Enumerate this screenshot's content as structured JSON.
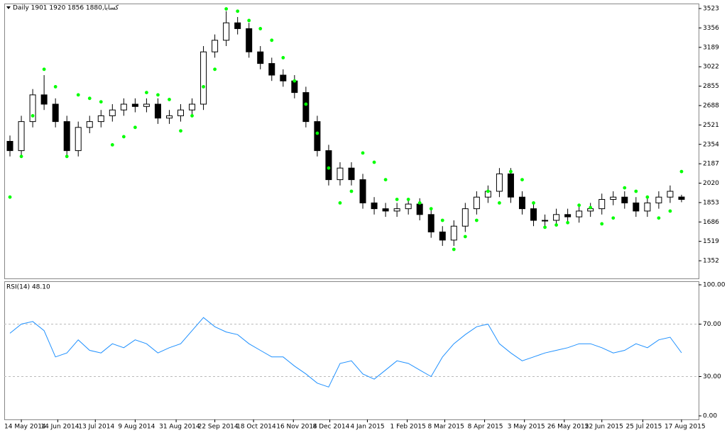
{
  "chart_data": [
    {
      "type": "candlestick",
      "title": "كسابا,Daily  1901 1920 1856 1880",
      "xlim": [
        -0.5,
        60.5
      ],
      "ylim": [
        1200,
        3566
      ],
      "yticks": [
        3523,
        3356,
        3189,
        3022,
        2855,
        2688,
        2521,
        2354,
        2187,
        2020,
        1853,
        1686,
        1519,
        1352
      ],
      "up_color": "#ffffff",
      "down_color": "#000000",
      "open": [
        2380,
        2300,
        2550,
        2780,
        2700,
        2550,
        2300,
        2500,
        2550,
        2600,
        2650,
        2700,
        2680,
        2700,
        2580,
        2600,
        2650,
        2700,
        3150,
        3250,
        3400,
        3350,
        3150,
        3050,
        2950,
        2900,
        2800,
        2550,
        2300,
        2050,
        2150,
        2050,
        1850,
        1800,
        1780,
        1800,
        1840,
        1750,
        1600,
        1530,
        1650,
        1800,
        1900,
        1950,
        2100,
        1900,
        1800,
        1700,
        1700,
        1750,
        1730,
        1780,
        1800,
        1880,
        1900,
        1850,
        1780,
        1850,
        1900,
        1901
      ],
      "high": [
        2430,
        2600,
        2830,
        2950,
        2750,
        2600,
        2550,
        2600,
        2650,
        2700,
        2750,
        2750,
        2750,
        2750,
        2650,
        2700,
        2750,
        3200,
        3300,
        3500,
        3450,
        3400,
        3200,
        3100,
        3000,
        2950,
        2850,
        2600,
        2350,
        2200,
        2200,
        2100,
        1900,
        1850,
        1850,
        1890,
        1890,
        1800,
        1650,
        1700,
        1850,
        1950,
        2000,
        2150,
        2150,
        1950,
        1850,
        1750,
        1800,
        1800,
        1830,
        1850,
        1930,
        1950,
        1950,
        1900,
        1900,
        1950,
        2000,
        1920
      ],
      "low": [
        2250,
        2250,
        2500,
        2650,
        2500,
        2250,
        2250,
        2450,
        2500,
        2550,
        2600,
        2630,
        2630,
        2530,
        2530,
        2550,
        2600,
        2650,
        3100,
        3200,
        3300,
        3100,
        3000,
        2900,
        2850,
        2750,
        2500,
        2250,
        2000,
        2000,
        2000,
        1800,
        1750,
        1730,
        1730,
        1750,
        1700,
        1550,
        1480,
        1480,
        1600,
        1750,
        1850,
        1900,
        1850,
        1750,
        1650,
        1650,
        1650,
        1680,
        1680,
        1730,
        1750,
        1830,
        1800,
        1730,
        1730,
        1800,
        1850,
        1856
      ],
      "close": [
        2300,
        2550,
        2780,
        2700,
        2550,
        2300,
        2500,
        2550,
        2600,
        2650,
        2700,
        2680,
        2700,
        2580,
        2600,
        2650,
        2700,
        3150,
        3250,
        3400,
        3350,
        3150,
        3050,
        2950,
        2900,
        2800,
        2550,
        2300,
        2050,
        2150,
        2050,
        1850,
        1800,
        1780,
        1800,
        1840,
        1750,
        1600,
        1530,
        1650,
        1800,
        1900,
        1950,
        2100,
        1900,
        1800,
        1700,
        1700,
        1750,
        1730,
        1780,
        1800,
        1880,
        1900,
        1850,
        1780,
        1850,
        1900,
        1950,
        1880
      ],
      "overlay": {
        "type": "scatter",
        "color": "#00ff00",
        "values": [
          1900,
          2250,
          2600,
          3000,
          2850,
          2250,
          2780,
          2750,
          2720,
          2350,
          2420,
          2500,
          2800,
          2780,
          2740,
          2470,
          2600,
          2850,
          3000,
          3520,
          3500,
          3420,
          3350,
          3250,
          3100,
          2900,
          2700,
          2450,
          2150,
          1850,
          1950,
          2280,
          2200,
          2050,
          1880,
          1880,
          1850,
          1800,
          1700,
          1450,
          1560,
          1700,
          1950,
          1850,
          2120,
          2050,
          1850,
          1640,
          1660,
          1680,
          1830,
          1810,
          1670,
          1720,
          1980,
          1950,
          1900,
          1720,
          1780,
          2120
        ]
      }
    },
    {
      "type": "line",
      "title": "RSI(14) 48.10",
      "xlim": [
        -0.5,
        60.5
      ],
      "ylim": [
        -2.7,
        102.7
      ],
      "yticks": [
        {
          "value": 100,
          "label": "100.00"
        },
        {
          "value": 70,
          "label": "70.00"
        },
        {
          "value": 30,
          "label": "30.00"
        },
        {
          "value": 0,
          "label": "0.00"
        }
      ],
      "xticks": [
        {
          "value": 1.0,
          "label": "14 May 2014"
        },
        {
          "value": 4.2,
          "label": "14 Jun 2014"
        },
        {
          "value": 7.5,
          "label": "13 Jul 2014"
        },
        {
          "value": 11.0,
          "label": "9 Aug 2014"
        },
        {
          "value": 14.6,
          "label": "31 Aug 2014"
        },
        {
          "value": 18.0,
          "label": "22 Sep 2014"
        },
        {
          "value": 21.4,
          "label": "18 Oct 2014"
        },
        {
          "value": 24.9,
          "label": "16 Nov 2014"
        },
        {
          "value": 28.1,
          "label": "8 Dec 2014"
        },
        {
          "value": 31.4,
          "label": "4 Jan 2015"
        },
        {
          "value": 34.9,
          "label": "1 Feb 2015"
        },
        {
          "value": 38.2,
          "label": "8 Mar 2015"
        },
        {
          "value": 41.7,
          "label": "8 Apr 2015"
        },
        {
          "value": 45.2,
          "label": "3 May 2015"
        },
        {
          "value": 48.7,
          "label": "26 May 2015"
        },
        {
          "value": 52.0,
          "label": "22 Jun 2015"
        },
        {
          "value": 55.6,
          "label": "25 Jul 2015"
        },
        {
          "value": 59.0,
          "label": "17 Aug 2015"
        }
      ],
      "color": "#1e90ff",
      "values": [
        63,
        70,
        72,
        65,
        45,
        48,
        58,
        50,
        48,
        55,
        52,
        58,
        55,
        48,
        52,
        55,
        65,
        75,
        68,
        64,
        62,
        55,
        50,
        45,
        45,
        38,
        32,
        25,
        22,
        40,
        42,
        32,
        28,
        35,
        42,
        40,
        35,
        30,
        45,
        55,
        62,
        68,
        70,
        55,
        48,
        42,
        45,
        48,
        50,
        52,
        55,
        55,
        52,
        48,
        50,
        55,
        52,
        58,
        60,
        48.1
      ]
    }
  ]
}
